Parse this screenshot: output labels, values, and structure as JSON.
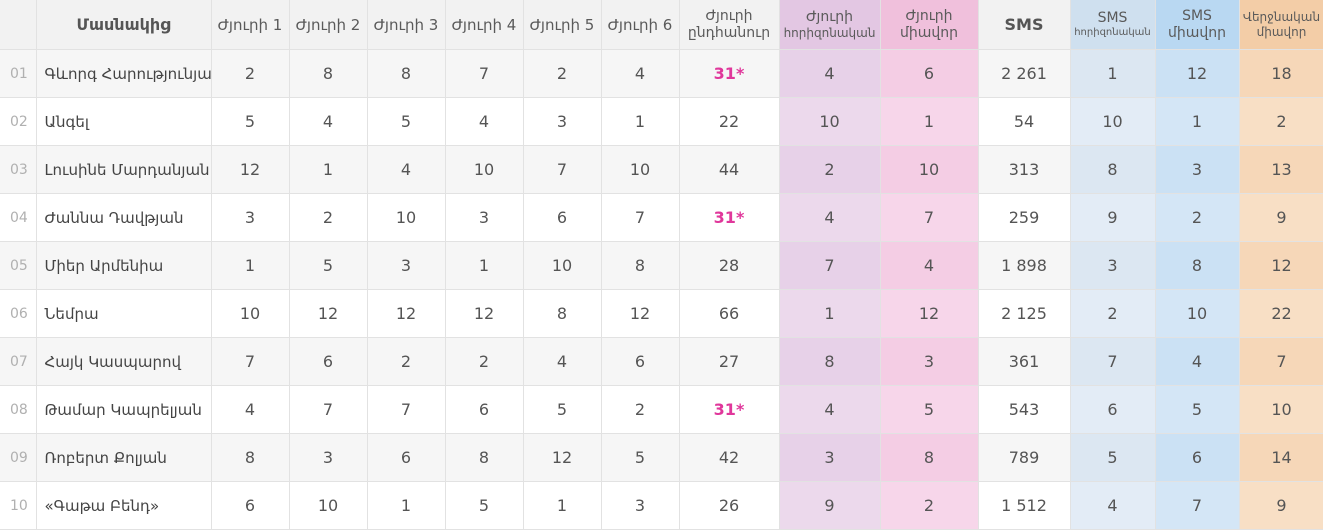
{
  "headers": {
    "participant": "Մասնակից",
    "j1": "Ժյուրի 1",
    "j2": "Ժյուրի 2",
    "j3": "Ժյուրի 3",
    "j4": "Ժյուրի 4",
    "j5": "Ժյուրի 5",
    "j6": "Ժյուրի 6",
    "jury_total_line1": "Ժյուրի",
    "jury_total_line2": "ընդհանուր",
    "jury_prof_line1": "Ժյուրի",
    "jury_prof_line2": "հորիզոնական",
    "jury_pts_line1": "Ժյուրի",
    "jury_pts_line2": "միավոր",
    "sms": "SMS",
    "sms_prof_line1": "SMS",
    "sms_prof_line2": "հորիզոնական",
    "sms_pts_line1": "SMS",
    "sms_pts_line2": "միավոր",
    "final_line1": "Վերջնական",
    "final_line2": "միավոր"
  },
  "rows": [
    {
      "num": "01",
      "name": "Գևորգ Հարությունյան",
      "j1": "2",
      "j2": "8",
      "j3": "8",
      "j4": "7",
      "j5": "2",
      "j6": "4",
      "jt": "31*",
      "jprof": "4",
      "jpts": "6",
      "sms": "2 261",
      "sprof": "1",
      "spts": "12",
      "final": "18"
    },
    {
      "num": "02",
      "name": "Անգել",
      "j1": "5",
      "j2": "4",
      "j3": "5",
      "j4": "4",
      "j5": "3",
      "j6": "1",
      "jt": "22",
      "jprof": "10",
      "jpts": "1",
      "sms": "54",
      "sprof": "10",
      "spts": "1",
      "final": "2"
    },
    {
      "num": "03",
      "name": "Լուսինե Մարդանյան",
      "j1": "12",
      "j2": "1",
      "j3": "4",
      "j4": "10",
      "j5": "7",
      "j6": "10",
      "jt": "44",
      "jprof": "2",
      "jpts": "10",
      "sms": "313",
      "sprof": "8",
      "spts": "3",
      "final": "13"
    },
    {
      "num": "04",
      "name": "Ժաննա Դավթյան",
      "j1": "3",
      "j2": "2",
      "j3": "10",
      "j4": "3",
      "j5": "6",
      "j6": "7",
      "jt": "31*",
      "jprof": "4",
      "jpts": "7",
      "sms": "259",
      "sprof": "9",
      "spts": "2",
      "final": "9"
    },
    {
      "num": "05",
      "name": "Միեր Արմենիա",
      "j1": "1",
      "j2": "5",
      "j3": "3",
      "j4": "1",
      "j5": "10",
      "j6": "8",
      "jt": "28",
      "jprof": "7",
      "jpts": "4",
      "sms": "1 898",
      "sprof": "3",
      "spts": "8",
      "final": "12"
    },
    {
      "num": "06",
      "name": "Նեմրա",
      "j1": "10",
      "j2": "12",
      "j3": "12",
      "j4": "12",
      "j5": "8",
      "j6": "12",
      "jt": "66",
      "jprof": "1",
      "jpts": "12",
      "sms": "2 125",
      "sprof": "2",
      "spts": "10",
      "final": "22"
    },
    {
      "num": "07",
      "name": "Հայկ Կասպարով",
      "j1": "7",
      "j2": "6",
      "j3": "2",
      "j4": "2",
      "j5": "4",
      "j6": "6",
      "jt": "27",
      "jprof": "8",
      "jpts": "3",
      "sms": "361",
      "sprof": "7",
      "spts": "4",
      "final": "7"
    },
    {
      "num": "08",
      "name": "Թամար Կապրելյան",
      "j1": "4",
      "j2": "7",
      "j3": "7",
      "j4": "6",
      "j5": "5",
      "j6": "2",
      "jt": "31*",
      "jprof": "4",
      "jpts": "5",
      "sms": "543",
      "sprof": "6",
      "spts": "5",
      "final": "10"
    },
    {
      "num": "09",
      "name": "Ռոբերտ Քոլյան",
      "j1": "8",
      "j2": "3",
      "j3": "6",
      "j4": "8",
      "j5": "12",
      "j6": "5",
      "jt": "42",
      "jprof": "3",
      "jpts": "8",
      "sms": "789",
      "sprof": "5",
      "spts": "6",
      "final": "14"
    },
    {
      "num": "10",
      "name": "«Գաթա Բենդ»",
      "j1": "6",
      "j2": "10",
      "j3": "1",
      "j4": "5",
      "j5": "1",
      "j6": "3",
      "jt": "26",
      "jprof": "9",
      "jpts": "2",
      "sms": "1 512",
      "sprof": "4",
      "spts": "7",
      "final": "9"
    }
  ],
  "highlight_color": "#e0379b"
}
